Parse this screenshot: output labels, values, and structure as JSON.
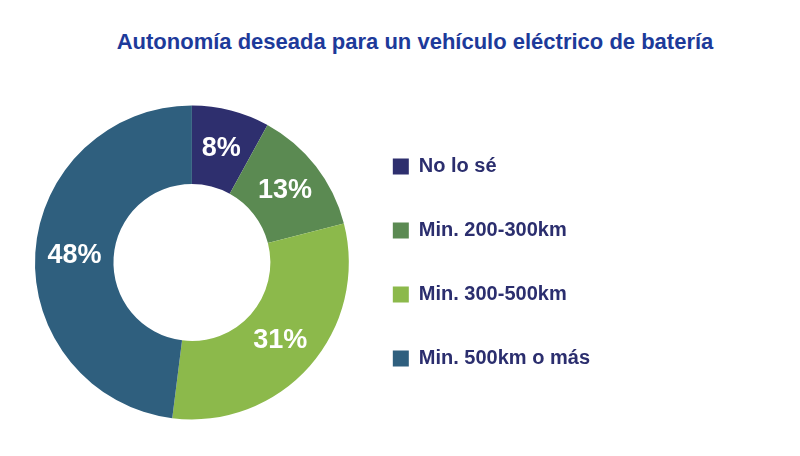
{
  "chart_data": {
    "type": "doughnut",
    "title": "Autonomía deseada para un vehículo eléctrico de batería",
    "categories": [
      "No lo sé",
      "Min. 200-300km",
      "Min. 300-500km",
      "Min. 500km o más"
    ],
    "values": [
      8,
      13,
      31,
      48
    ],
    "value_labels": [
      "8%",
      "13%",
      "31%",
      "48%"
    ],
    "colors": [
      "#2e2f6e",
      "#5b8a52",
      "#8cb94b",
      "#2f5f7e"
    ],
    "legend": "right",
    "data_labels": true
  }
}
